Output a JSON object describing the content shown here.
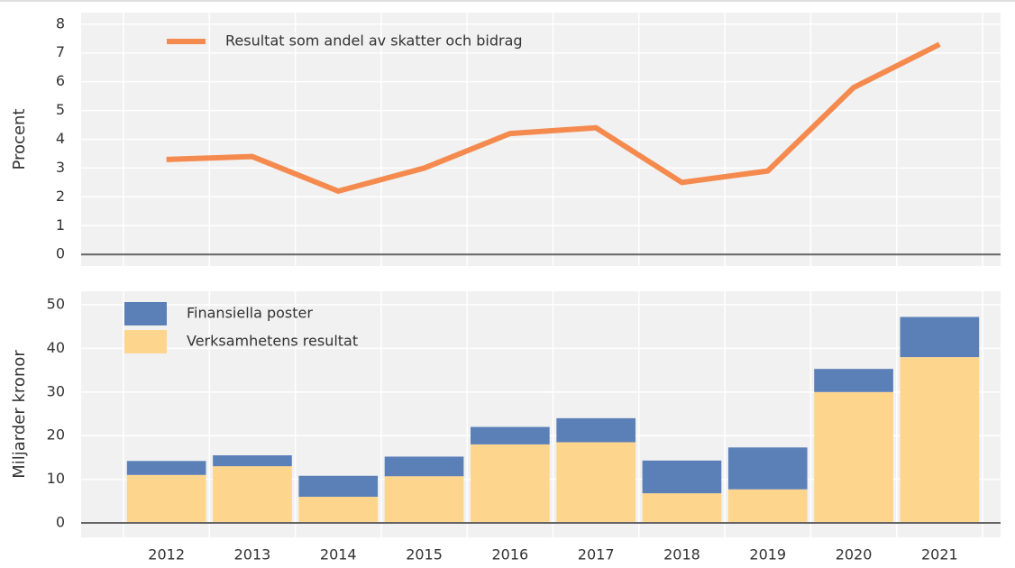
{
  "chart_data": [
    {
      "type": "line",
      "ylabel": "Procent",
      "categories": [
        "2012",
        "2013",
        "2014",
        "2015",
        "2016",
        "2017",
        "2018",
        "2019",
        "2020",
        "2021"
      ],
      "series": [
        {
          "name": "Resultat som andel av skatter och bidrag",
          "color": "#f58a4e",
          "values": [
            3.3,
            3.4,
            2.2,
            3.0,
            4.2,
            4.4,
            2.5,
            2.9,
            5.8,
            7.3
          ]
        }
      ],
      "ylim": [
        -0.4,
        8.4
      ],
      "yticks": [
        0,
        1,
        2,
        3,
        4,
        5,
        6,
        7,
        8
      ],
      "grid": true
    },
    {
      "type": "stacked_bar",
      "ylabel": "Miljarder kronor",
      "categories": [
        "2012",
        "2013",
        "2014",
        "2015",
        "2016",
        "2017",
        "2018",
        "2019",
        "2020",
        "2021"
      ],
      "series": [
        {
          "name": "Verksamhetens resultat",
          "color": "#fdd58c",
          "values": [
            11,
            13,
            6,
            10.7,
            18,
            18.5,
            6.8,
            7.7,
            30,
            38
          ]
        },
        {
          "name": "Finansiella poster",
          "color": "#5b80b8",
          "values": [
            3.2,
            2.5,
            4.8,
            4.5,
            4,
            5.5,
            7.5,
            9.6,
            5.3,
            9.2
          ]
        }
      ],
      "ylim": [
        -3.3,
        53.1
      ],
      "yticks": [
        0,
        10,
        20,
        30,
        40,
        50
      ],
      "grid": true
    }
  ]
}
